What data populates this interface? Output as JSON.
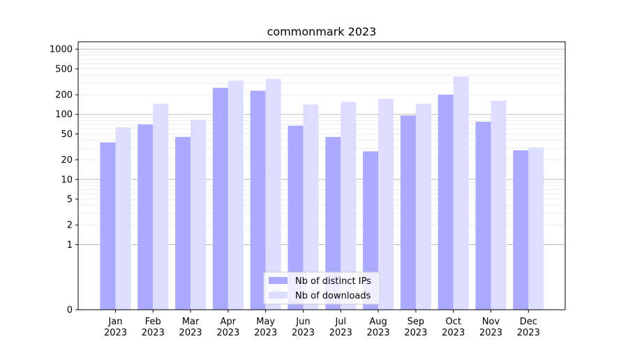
{
  "chart_data": {
    "type": "bar",
    "title": "commonmark 2023",
    "scale": "symlog",
    "ylim": [
      0,
      1300
    ],
    "y_ticks": [
      0,
      1,
      2,
      5,
      10,
      20,
      50,
      100,
      200,
      500,
      1000
    ],
    "grid": true,
    "legend_position": "bottom-center",
    "categories": [
      {
        "month": "Jan",
        "year": "2023"
      },
      {
        "month": "Feb",
        "year": "2023"
      },
      {
        "month": "Mar",
        "year": "2023"
      },
      {
        "month": "Apr",
        "year": "2023"
      },
      {
        "month": "May",
        "year": "2023"
      },
      {
        "month": "Jun",
        "year": "2023"
      },
      {
        "month": "Jul",
        "year": "2023"
      },
      {
        "month": "Aug",
        "year": "2023"
      },
      {
        "month": "Sep",
        "year": "2023"
      },
      {
        "month": "Oct",
        "year": "2023"
      },
      {
        "month": "Nov",
        "year": "2023"
      },
      {
        "month": "Dec",
        "year": "2023"
      }
    ],
    "series": [
      {
        "name": "Nb of distinct IPs",
        "color": "#aaaaff",
        "values": [
          37,
          70,
          45,
          255,
          230,
          67,
          45,
          27,
          96,
          200,
          77,
          28
        ]
      },
      {
        "name": "Nb of downloads",
        "color": "#ddddff",
        "values": [
          63,
          145,
          83,
          330,
          350,
          142,
          155,
          172,
          145,
          380,
          162,
          31
        ]
      }
    ]
  }
}
